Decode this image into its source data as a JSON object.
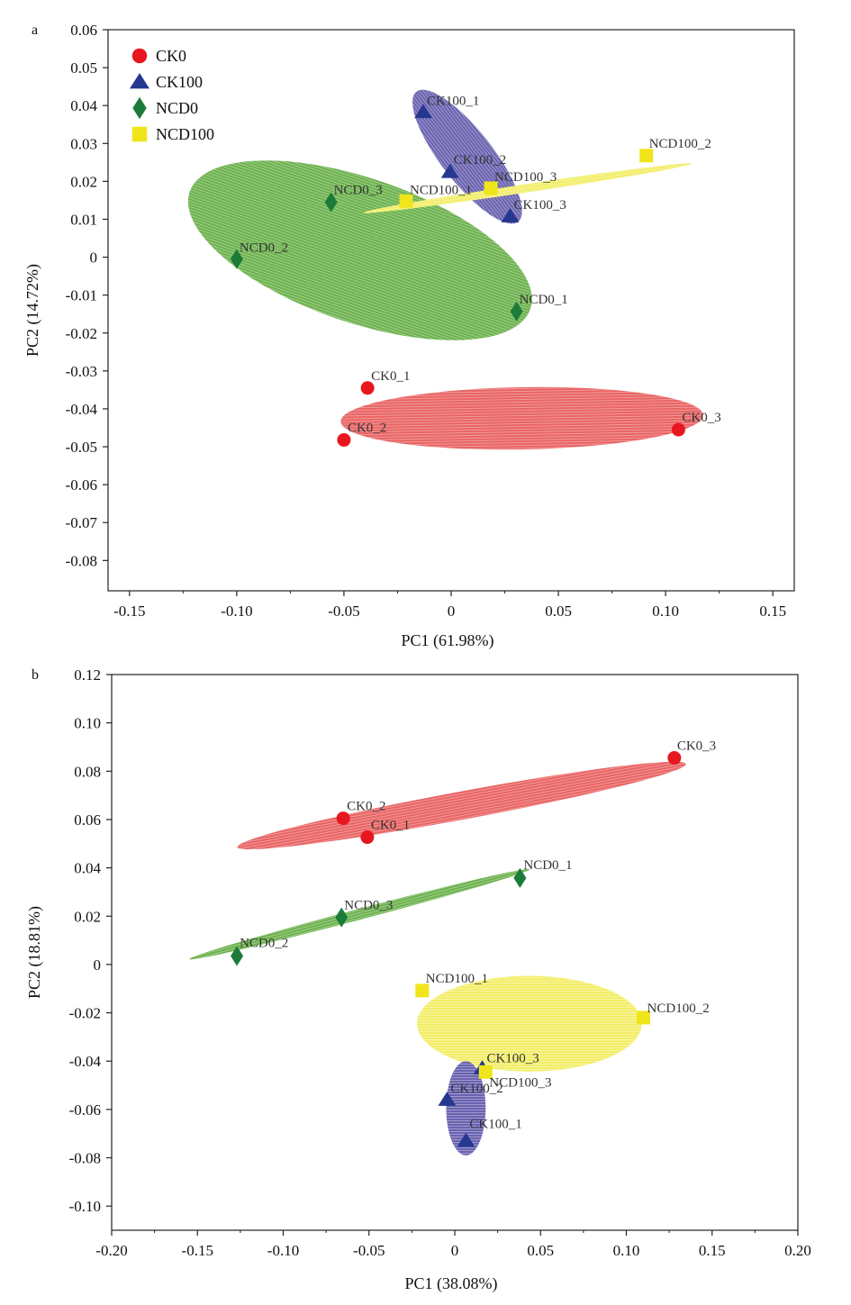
{
  "colors": {
    "CK0": "#e8171f",
    "CK100": "#25378f",
    "NCD0": "#1b7b38",
    "NCD100": "#f0e51b",
    "CK0_fill": "#ea6464",
    "CK100_fill": "#6a63b0",
    "NCD0_fill": "#6db24e",
    "NCD100_fill": "#f3ee6a"
  },
  "legend": [
    {
      "name": "CK0",
      "shape": "circle"
    },
    {
      "name": "CK100",
      "shape": "triangle"
    },
    {
      "name": "NCD0",
      "shape": "diamond"
    },
    {
      "name": "NCD100",
      "shape": "square"
    }
  ],
  "chart_data": [
    {
      "panel": "a",
      "type": "scatter",
      "xlabel": "PC1 (61.98%)",
      "ylabel": "PC2 (14.72%)",
      "xlim": [
        -0.16,
        0.16
      ],
      "ylim": [
        -0.088,
        0.06
      ],
      "xticks": [
        -0.15,
        -0.1,
        -0.05,
        0,
        0.05,
        0.1,
        0.15
      ],
      "xtick_labels": [
        "-0.15",
        "-0.10",
        "-0.05",
        "0",
        "0.05",
        "0.10",
        "0.15"
      ],
      "yticks": [
        0.06,
        0.05,
        0.04,
        0.03,
        0.02,
        0.01,
        0,
        -0.01,
        -0.02,
        -0.03,
        -0.04,
        -0.05,
        -0.06,
        -0.07,
        -0.08
      ],
      "ytick_labels": [
        "0.06",
        "0.05",
        "0.04",
        "0.03",
        "0.02",
        "0.01",
        "0",
        "-0.01",
        "-0.02",
        "-0.03",
        "-0.04",
        "-0.05",
        "-0.06",
        "-0.07",
        "-0.08"
      ],
      "legend_position": "top-left",
      "grid": false,
      "points": [
        {
          "label": "CK0_1",
          "group": "CK0",
          "x": -0.039,
          "y": -0.0345
        },
        {
          "label": "CK0_2",
          "group": "CK0",
          "x": -0.05,
          "y": -0.0482
        },
        {
          "label": "CK0_3",
          "group": "CK0",
          "x": 0.106,
          "y": -0.0455
        },
        {
          "label": "CK100_1",
          "group": "CK100",
          "x": -0.013,
          "y": 0.0383
        },
        {
          "label": "CK100_2",
          "group": "CK100",
          "x": -0.0005,
          "y": 0.0225
        },
        {
          "label": "CK100_3",
          "group": "CK100",
          "x": 0.0275,
          "y": 0.0108
        },
        {
          "label": "NCD0_1",
          "group": "NCD0",
          "x": 0.0305,
          "y": -0.0143
        },
        {
          "label": "NCD0_2",
          "group": "NCD0",
          "x": -0.1,
          "y": -0.0005
        },
        {
          "label": "NCD0_3",
          "group": "NCD0",
          "x": -0.056,
          "y": 0.0145
        },
        {
          "label": "NCD100_1",
          "group": "NCD100",
          "x": -0.021,
          "y": 0.0148
        },
        {
          "label": "NCD100_2",
          "group": "NCD100",
          "x": 0.091,
          "y": 0.0268
        },
        {
          "label": "NCD100_3",
          "group": "NCD100",
          "x": 0.0185,
          "y": 0.0182
        }
      ],
      "ellipses": [
        {
          "group": "CK0",
          "cx": 0.033,
          "cy": -0.0425,
          "rx": 0.0845,
          "ry": 0.0082,
          "angle": -1.0
        },
        {
          "group": "NCD0",
          "cx": -0.0425,
          "cy": 0.0018,
          "rx": 0.084,
          "ry": 0.019,
          "angle": 19.0
        },
        {
          "group": "CK100",
          "cx": 0.0075,
          "cy": 0.0265,
          "rx": 0.0385,
          "ry": 0.0068,
          "angle": 52.0
        },
        {
          "group": "NCD100",
          "cx": 0.0355,
          "cy": 0.0182,
          "rx": 0.0775,
          "ry": 0.0011,
          "angle": -8.5
        }
      ]
    },
    {
      "panel": "b",
      "type": "scatter",
      "xlabel": "PC1 (38.08%)",
      "ylabel": "PC2 (18.81%)",
      "xlim": [
        -0.2,
        0.2
      ],
      "ylim": [
        -0.11,
        0.12
      ],
      "xticks": [
        -0.2,
        -0.15,
        -0.1,
        -0.05,
        0,
        0.05,
        0.1,
        0.15,
        0.2
      ],
      "xtick_labels": [
        "-0.20",
        "-0.15",
        "-0.10",
        "-0.05",
        "0",
        "0.05",
        "0.10",
        "0.15",
        "0.20"
      ],
      "yticks": [
        0.12,
        0.1,
        0.08,
        0.06,
        0.04,
        0.02,
        0,
        -0.02,
        -0.04,
        -0.06,
        -0.08,
        -0.1
      ],
      "ytick_labels": [
        "0.12",
        "0.10",
        "0.08",
        "0.06",
        "0.04",
        "0.02",
        "0",
        "-0.02",
        "-0.04",
        "-0.06",
        "-0.08",
        "-0.10"
      ],
      "grid": false,
      "points": [
        {
          "label": "CK0_1",
          "group": "CK0",
          "x": -0.051,
          "y": 0.0527
        },
        {
          "label": "CK0_2",
          "group": "CK0",
          "x": -0.065,
          "y": 0.0605
        },
        {
          "label": "CK0_3",
          "group": "CK0",
          "x": 0.128,
          "y": 0.0855
        },
        {
          "label": "CK100_1",
          "group": "CK100",
          "x": 0.0065,
          "y": -0.073
        },
        {
          "label": "CK100_2",
          "group": "CK100",
          "x": -0.0045,
          "y": -0.056
        },
        {
          "label": "CK100_3",
          "group": "CK100",
          "x": 0.016,
          "y": -0.043
        },
        {
          "label": "NCD0_1",
          "group": "NCD0",
          "x": 0.038,
          "y": 0.0358
        },
        {
          "label": "NCD0_2",
          "group": "NCD0",
          "x": -0.127,
          "y": 0.0035
        },
        {
          "label": "NCD0_3",
          "group": "NCD0",
          "x": -0.066,
          "y": 0.0195
        },
        {
          "label": "NCD100_1",
          "group": "NCD100",
          "x": -0.019,
          "y": -0.0108
        },
        {
          "label": "NCD100_2",
          "group": "NCD100",
          "x": 0.11,
          "y": -0.022
        },
        {
          "label": "NCD100_3",
          "group": "NCD100",
          "x": 0.018,
          "y": -0.0445
        }
      ],
      "ellipses": [
        {
          "group": "CK0",
          "cx": 0.004,
          "cy": 0.0658,
          "rx": 0.133,
          "ry": 0.0058,
          "angle": -10.5
        },
        {
          "group": "NCD0",
          "cx": -0.0555,
          "cy": 0.0208,
          "rx": 0.1025,
          "ry": 0.0022,
          "angle": -14.8
        },
        {
          "group": "NCD100",
          "cx": 0.0435,
          "cy": -0.0245,
          "rx": 0.0655,
          "ry": 0.0198,
          "angle": 0.0
        },
        {
          "group": "CK100",
          "cx": 0.0065,
          "cy": -0.0595,
          "rx": 0.0115,
          "ry": 0.0195,
          "angle": 0.0
        }
      ]
    }
  ]
}
